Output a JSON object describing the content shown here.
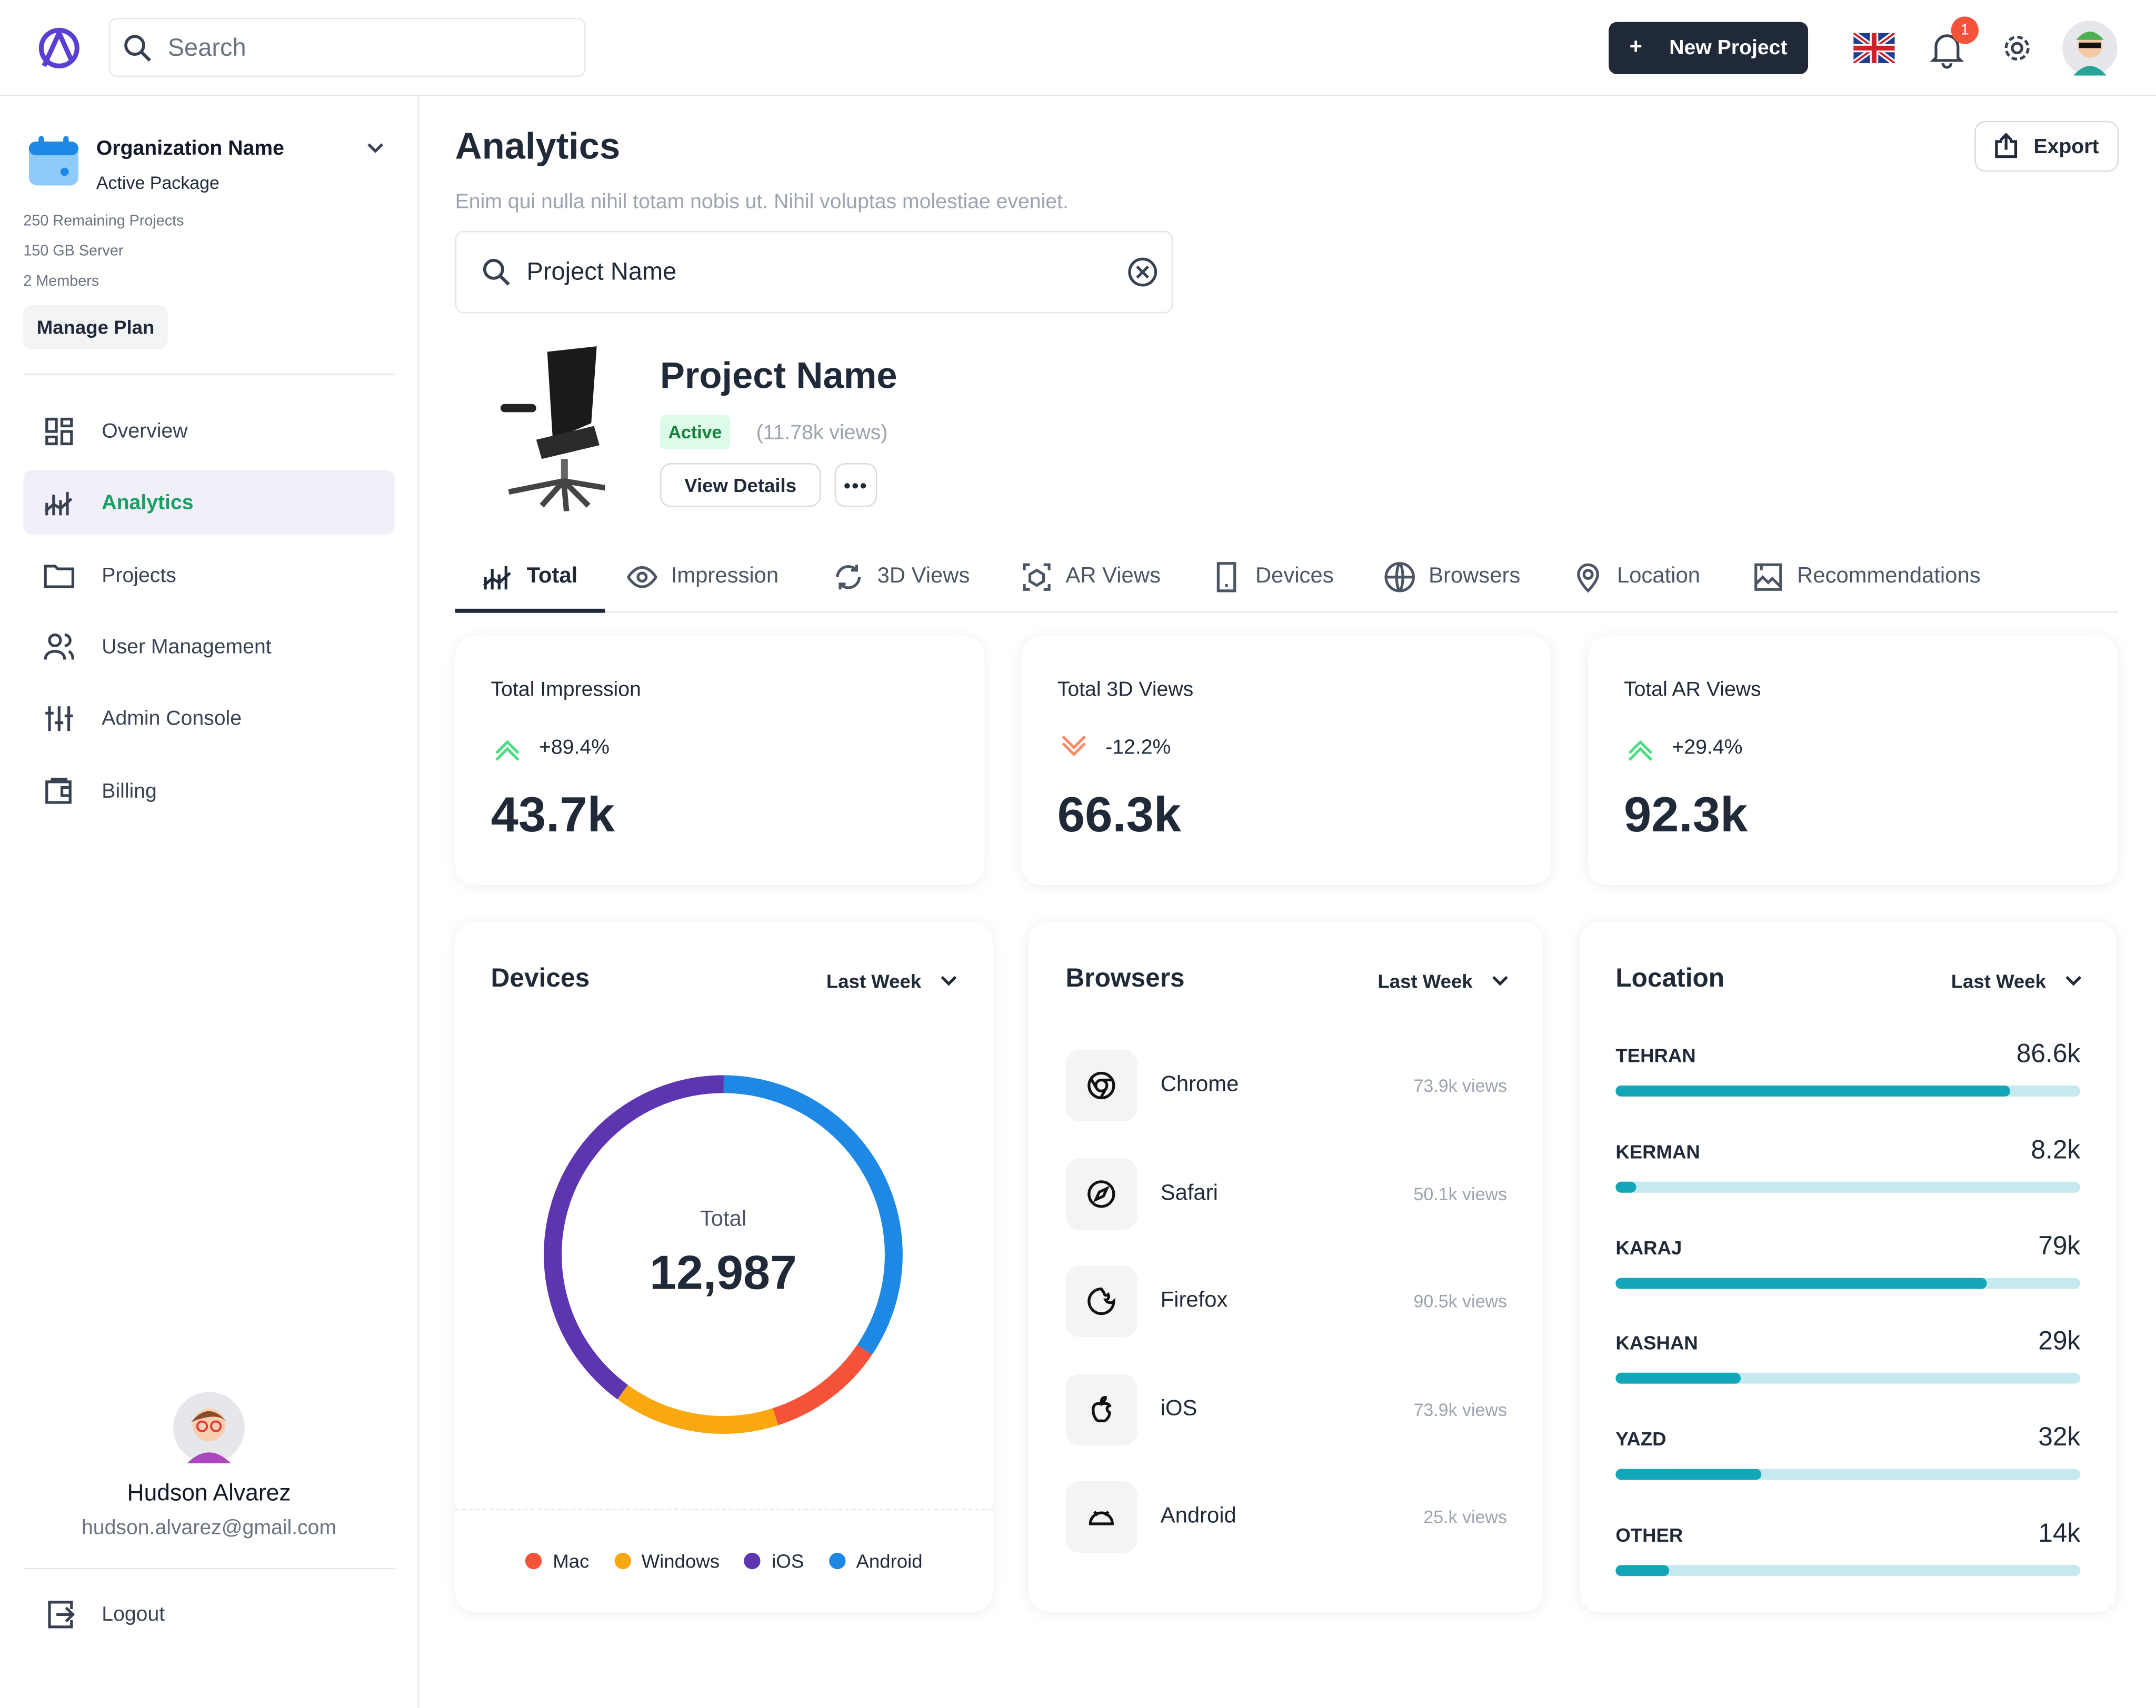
{
  "header": {
    "search_placeholder": "Search",
    "new_project": "New Project",
    "notifications": "1"
  },
  "sidebar": {
    "org_name": "Organization Name",
    "package": "Active Package",
    "details": [
      "250 Remaining Projects",
      "150 GB Server",
      "2 Members"
    ],
    "manage_plan": "Manage Plan",
    "nav": [
      "Overview",
      "Analytics",
      "Projects",
      "User Management",
      "Admin Console",
      "Billing"
    ],
    "active_nav": 1,
    "user": {
      "name": "Hudson Alvarez",
      "email": "hudson.alvarez@gmail.com"
    },
    "logout": "Logout"
  },
  "page": {
    "title": "Analytics",
    "subtitle": "Enim qui nulla nihil totam nobis ut. Nihil voluptas molestiae eveniet.",
    "export": "Export",
    "search_value": "Project Name"
  },
  "project": {
    "name": "Project Name",
    "status": "Active",
    "views": "(11.78k views)",
    "view_details": "View Details"
  },
  "tabs": {
    "items": [
      "Total",
      "Impression",
      "3D Views",
      "AR Views",
      "Devices",
      "Browsers",
      "Location",
      "Recommendations"
    ],
    "active": 0
  },
  "stats": [
    {
      "label": "Total Impression",
      "change": "+89.4%",
      "trend": "up",
      "value": "43.7k"
    },
    {
      "label": "Total 3D Views",
      "change": "-12.2%",
      "trend": "down",
      "value": "66.3k"
    },
    {
      "label": "Total AR Views",
      "change": "+29.4%",
      "trend": "up",
      "value": "92.3k"
    }
  ],
  "devices": {
    "title": "Devices",
    "period": "Last Week",
    "total_label": "Total",
    "total": "12,987",
    "segments": [
      {
        "name": "Mac",
        "color": "#f4533a",
        "share": 10.6
      },
      {
        "name": "Windows",
        "color": "#f9a80f",
        "share": 15
      },
      {
        "name": "iOS",
        "color": "#5e35b1",
        "share": 40
      },
      {
        "name": "Android",
        "color": "#1e88e5",
        "share": 34.4
      }
    ]
  },
  "browsers": {
    "title": "Browsers",
    "period": "Last Week",
    "items": [
      {
        "name": "Chrome",
        "views": "73.9k views"
      },
      {
        "name": "Safari",
        "views": "50.1k views"
      },
      {
        "name": "Firefox",
        "views": "90.5k views"
      },
      {
        "name": "iOS",
        "views": "73.9k views"
      },
      {
        "name": "Android",
        "views": "25.k views"
      }
    ]
  },
  "location": {
    "title": "Location",
    "period": "Last Week",
    "items": [
      {
        "name": "TEHRAN",
        "value": "86.6k",
        "progress": 85
      },
      {
        "name": "KERMAN",
        "value": "8.2k",
        "progress": 4.5
      },
      {
        "name": "KARAJ",
        "value": "79k",
        "progress": 80
      },
      {
        "name": "KASHAN",
        "value": "29k",
        "progress": 27
      },
      {
        "name": "YAZD",
        "value": "32k",
        "progress": 31.5
      },
      {
        "name": "OTHER",
        "value": "14k",
        "progress": 11.5
      }
    ]
  }
}
